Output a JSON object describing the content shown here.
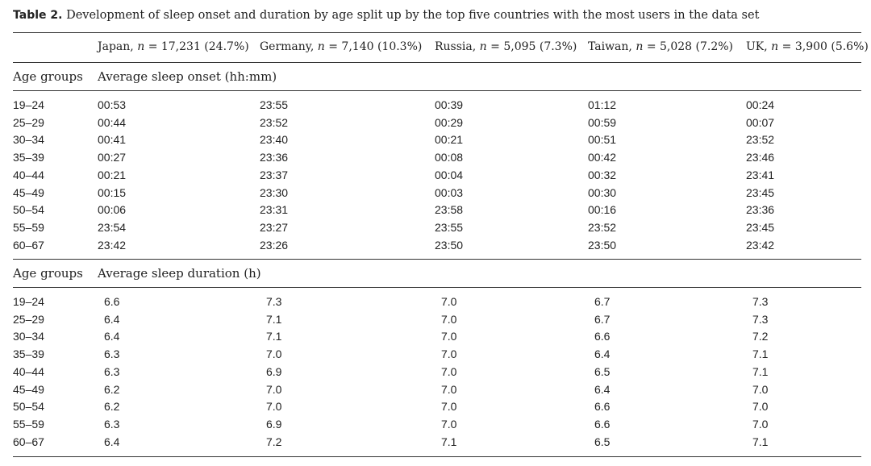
{
  "caption": {
    "label": "Table 2.",
    "text": "Development of sleep onset and duration by age split up by the top five countries with the most users in the data set"
  },
  "columns": [
    {
      "name": "Japan",
      "n_label": "n",
      "n_text": "= 17,231 (24.7%)"
    },
    {
      "name": "Germany",
      "n_label": "n",
      "n_text": "= 7,140 (10.3%)"
    },
    {
      "name": "Russia",
      "n_label": "n",
      "n_text": "= 5,095 (7.3%)"
    },
    {
      "name": "Taiwan",
      "n_label": "n",
      "n_text": "= 5,028 (7.2%)"
    },
    {
      "name": "UK",
      "n_label": "n",
      "n_text": "= 3,900 (5.6%)"
    }
  ],
  "onset": {
    "group_label": "Age groups",
    "measure_label": "Average sleep onset (hh:mm)",
    "rows": [
      {
        "age": "19–24",
        "values": [
          "00:53",
          "23:55",
          "00:39",
          "01:12",
          "00:24"
        ]
      },
      {
        "age": "25–29",
        "values": [
          "00:44",
          "23:52",
          "00:29",
          "00:59",
          "00:07"
        ]
      },
      {
        "age": "30–34",
        "values": [
          "00:41",
          "23:40",
          "00:21",
          "00:51",
          "23:52"
        ]
      },
      {
        "age": "35–39",
        "values": [
          "00:27",
          "23:36",
          "00:08",
          "00:42",
          "23:46"
        ]
      },
      {
        "age": "40–44",
        "values": [
          "00:21",
          "23:37",
          "00:04",
          "00:32",
          "23:41"
        ]
      },
      {
        "age": "45–49",
        "values": [
          "00:15",
          "23:30",
          "00:03",
          "00:30",
          "23:45"
        ]
      },
      {
        "age": "50–54",
        "values": [
          "00:06",
          "23:31",
          "23:58",
          "00:16",
          "23:36"
        ]
      },
      {
        "age": "55–59",
        "values": [
          "23:54",
          "23:27",
          "23:55",
          "23:52",
          "23:45"
        ]
      },
      {
        "age": "60–67",
        "values": [
          "23:42",
          "23:26",
          "23:50",
          "23:50",
          "23:42"
        ]
      }
    ]
  },
  "duration": {
    "group_label": "Age groups",
    "measure_label": "Average sleep duration (h)",
    "rows": [
      {
        "age": "19–24",
        "values": [
          "6.6",
          "7.3",
          "7.0",
          "6.7",
          "7.3"
        ]
      },
      {
        "age": "25–29",
        "values": [
          "6.4",
          "7.1",
          "7.0",
          "6.7",
          "7.3"
        ]
      },
      {
        "age": "30–34",
        "values": [
          "6.4",
          "7.1",
          "7.0",
          "6.6",
          "7.2"
        ]
      },
      {
        "age": "35–39",
        "values": [
          "6.3",
          "7.0",
          "7.0",
          "6.4",
          "7.1"
        ]
      },
      {
        "age": "40–44",
        "values": [
          "6.3",
          "6.9",
          "7.0",
          "6.5",
          "7.1"
        ]
      },
      {
        "age": "45–49",
        "values": [
          "6.2",
          "7.0",
          "7.0",
          "6.4",
          "7.0"
        ]
      },
      {
        "age": "50–54",
        "values": [
          "6.2",
          "7.0",
          "7.0",
          "6.6",
          "7.0"
        ]
      },
      {
        "age": "55–59",
        "values": [
          "6.3",
          "6.9",
          "7.0",
          "6.6",
          "7.0"
        ]
      },
      {
        "age": "60–67",
        "values": [
          "6.4",
          "7.2",
          "7.1",
          "6.5",
          "7.1"
        ]
      }
    ]
  }
}
